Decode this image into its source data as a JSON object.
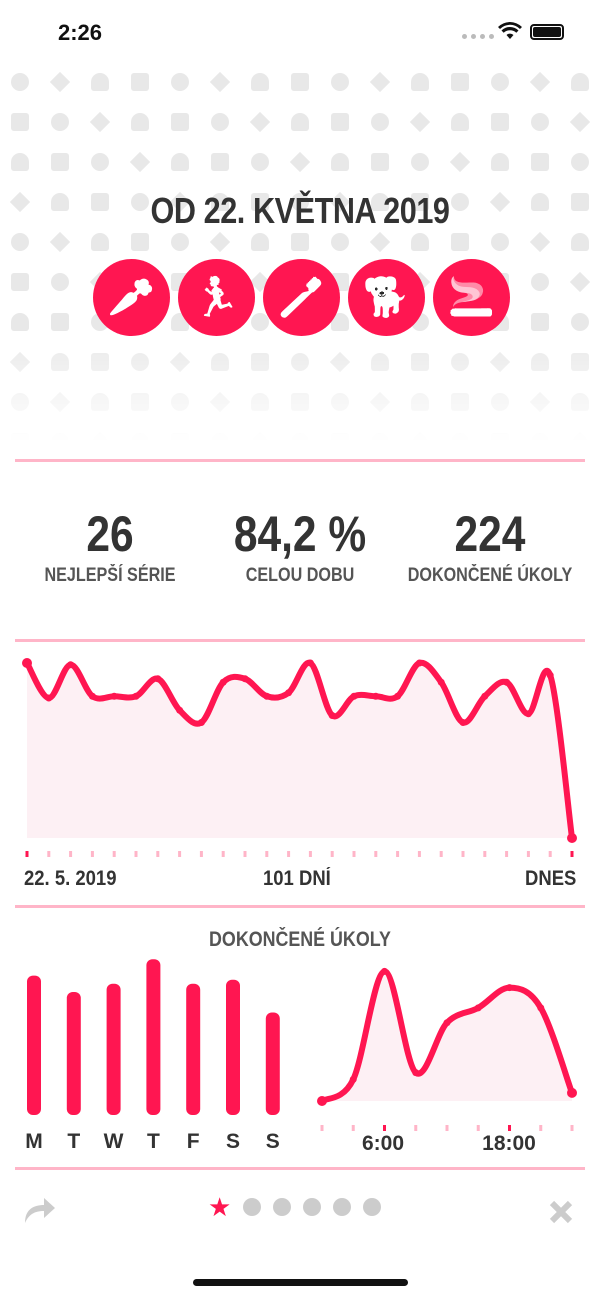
{
  "status_bar": {
    "time": "2:26"
  },
  "header": {
    "title": "OD 22. KVĚTNA 2019",
    "habits": [
      {
        "icon": "carrot-icon",
        "glyph": "🥕"
      },
      {
        "icon": "running-icon",
        "glyph": "🏃"
      },
      {
        "icon": "toothbrush-icon",
        "glyph": "🪥"
      },
      {
        "icon": "dog-icon",
        "glyph": "🐕"
      },
      {
        "icon": "cigarette-icon",
        "glyph": "🚬"
      }
    ]
  },
  "stats": [
    {
      "value": "26",
      "label": "NEJLEPŠÍ SÉRIE"
    },
    {
      "value": "84,2 %",
      "label": "CELOU DOBU"
    },
    {
      "value": "224",
      "label": "DOKONČENÉ ÚKOLY"
    }
  ],
  "timeline": {
    "start_label": "22. 5. 2019",
    "mid_label": "101 DNÍ",
    "end_label": "DNES"
  },
  "tasks_title": "DOKONČENÉ ÚKOLY",
  "accent": "#ff1651",
  "chart_data": [
    {
      "type": "area",
      "title": "",
      "x_labels": [
        "22. 5. 2019",
        "101 DNÍ",
        "DNES"
      ],
      "ylim": [
        0,
        100
      ],
      "values": [
        100,
        80,
        99,
        81,
        81,
        81,
        91,
        73,
        66,
        89,
        91,
        81,
        83,
        100,
        70,
        81,
        81,
        81,
        100,
        89,
        66,
        81,
        89,
        71,
        93,
        0
      ]
    },
    {
      "type": "bar",
      "title": "DOKONČENÉ ÚKOLY",
      "categories": [
        "M",
        "T",
        "W",
        "T",
        "F",
        "S",
        "S"
      ],
      "values": [
        34,
        30,
        32,
        38,
        32,
        33,
        25
      ]
    },
    {
      "type": "area",
      "title": "DOKONČENÉ ÚKOLY",
      "x": [
        0,
        3,
        6,
        9,
        12,
        15,
        18,
        21,
        24
      ],
      "x_tick_labels": [
        "6:00",
        "18:00"
      ],
      "ylim": [
        0,
        100
      ],
      "values": [
        0,
        16,
        96,
        21,
        58,
        69,
        84,
        69,
        6
      ]
    }
  ],
  "pager": {
    "pages": 6,
    "current": 1
  }
}
